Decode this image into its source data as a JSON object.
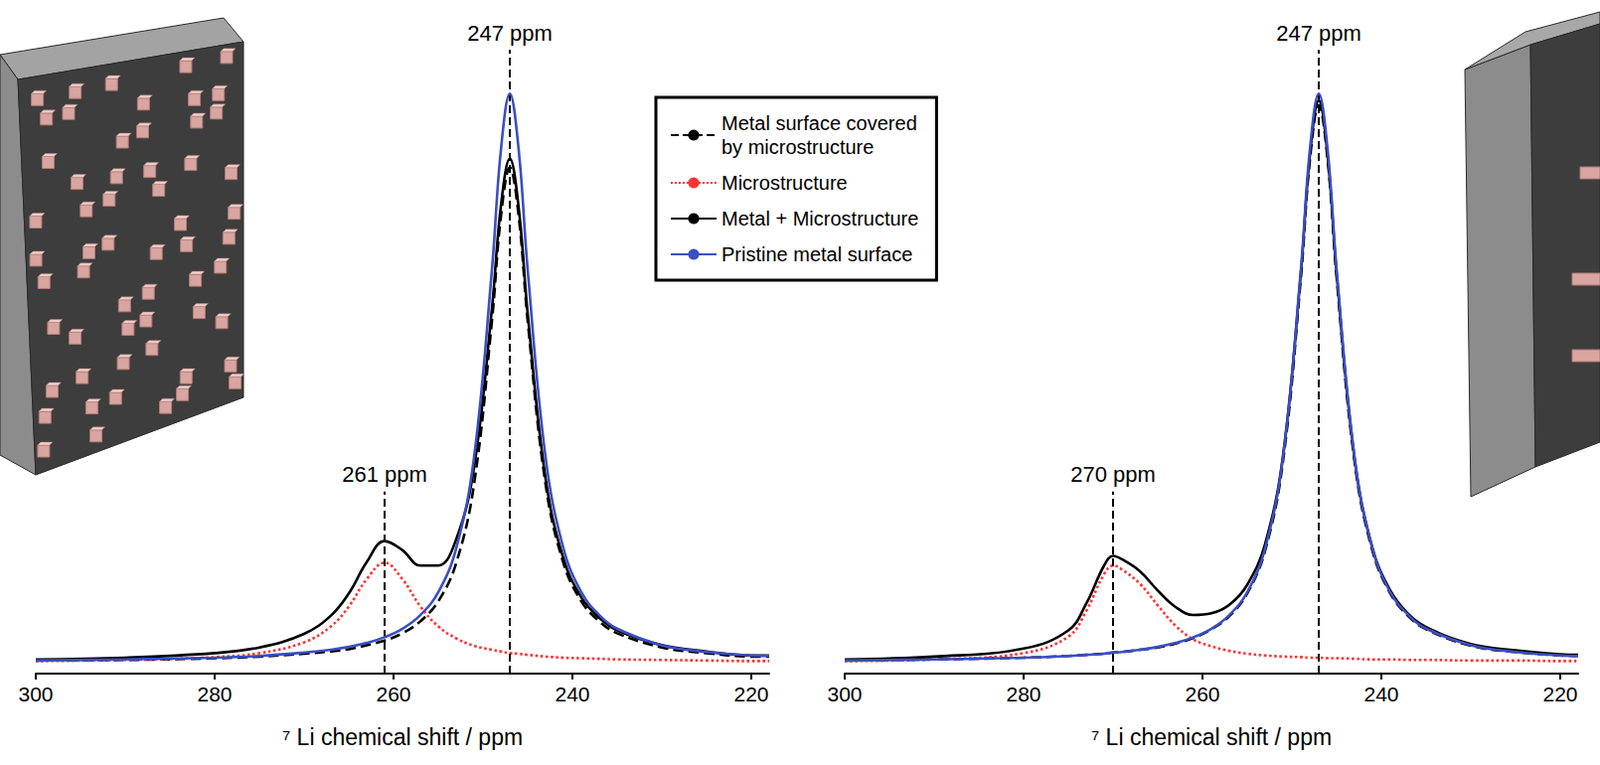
{
  "chart_data": [
    {
      "type": "line",
      "xlabel": "⁷ Li chemical shift / ppm",
      "xlim": [
        300,
        218
      ],
      "xticks": [
        300,
        280,
        260,
        240,
        220
      ],
      "ylim": [
        -0.02,
        1.1
      ],
      "tick_labels": "x",
      "grid": false,
      "legend": "top",
      "x": [
        300,
        290,
        280,
        275,
        270,
        267,
        265,
        263,
        261,
        259,
        257,
        255,
        253,
        251,
        249,
        248,
        247,
        246,
        245,
        243,
        241,
        239,
        237,
        235,
        230,
        225,
        220,
        218
      ],
      "series": [
        {
          "name": "Metal surface covered by microstructure",
          "color": "#000000",
          "line_style": "dashed",
          "values": [
            0.003,
            0.004,
            0.007,
            0.01,
            0.015,
            0.019,
            0.023,
            0.03,
            0.038,
            0.051,
            0.072,
            0.107,
            0.174,
            0.313,
            0.6,
            0.783,
            0.87,
            0.783,
            0.6,
            0.313,
            0.174,
            0.107,
            0.072,
            0.051,
            0.026,
            0.016,
            0.01,
            0.01
          ]
        },
        {
          "name": "Microstructure",
          "color": "#ff3333",
          "line_style": "dotted",
          "values": [
            0.002,
            0.004,
            0.009,
            0.016,
            0.035,
            0.063,
            0.098,
            0.146,
            0.175,
            0.146,
            0.098,
            0.063,
            0.042,
            0.029,
            0.022,
            0.019,
            0.016,
            0.015,
            0.013,
            0.01,
            0.008,
            0.007,
            0.006,
            0.005,
            0.004,
            0.003,
            0.002,
            0.002
          ]
        },
        {
          "name": "Metal + Microstructure",
          "color": "#000000",
          "line_style": "solid",
          "values": [
            0.005,
            0.008,
            0.016,
            0.026,
            0.05,
            0.082,
            0.121,
            0.176,
            0.213,
            0.197,
            0.17,
            0.17,
            0.216,
            0.342,
            0.622,
            0.802,
            0.886,
            0.798,
            0.613,
            0.323,
            0.182,
            0.114,
            0.078,
            0.056,
            0.03,
            0.019,
            0.012,
            0.012
          ]
        },
        {
          "name": "Pristine metal surface",
          "color": "#3b4fc4",
          "line_style": "solid",
          "values": [
            0.003,
            0.005,
            0.008,
            0.011,
            0.017,
            0.022,
            0.027,
            0.034,
            0.044,
            0.059,
            0.083,
            0.123,
            0.2,
            0.36,
            0.69,
            0.9,
            1.0,
            0.9,
            0.69,
            0.36,
            0.2,
            0.123,
            0.083,
            0.059,
            0.03,
            0.018,
            0.012,
            0.011
          ]
        }
      ],
      "annotations": [
        {
          "x": 247,
          "y": 1.077,
          "label": "247 ppm"
        },
        {
          "x": 261,
          "y": 0.3,
          "label": "261 ppm"
        }
      ]
    },
    {
      "type": "line",
      "xlabel": "⁷ Li chemical shift / ppm",
      "xlim": [
        300,
        218
      ],
      "xticks": [
        300,
        280,
        260,
        240,
        220
      ],
      "ylim": [
        -0.02,
        1.1
      ],
      "tick_labels": "x",
      "grid": false,
      "x": [
        300,
        290,
        280,
        275,
        273,
        271,
        270,
        269,
        267,
        265,
        263,
        261,
        259,
        257,
        255,
        253,
        251,
        249,
        248,
        247,
        246,
        245,
        243,
        241,
        239,
        237,
        235,
        230,
        225,
        220,
        218
      ],
      "series": [
        {
          "name": "Metal surface covered by microstructure",
          "color": "#000000",
          "line_style": "dashed",
          "values": [
            0.003,
            0.005,
            0.008,
            0.011,
            0.013,
            0.015,
            0.017,
            0.018,
            0.022,
            0.026,
            0.033,
            0.043,
            0.058,
            0.081,
            0.121,
            0.196,
            0.353,
            0.676,
            0.882,
            0.98,
            0.882,
            0.676,
            0.353,
            0.196,
            0.121,
            0.081,
            0.058,
            0.029,
            0.018,
            0.012,
            0.011
          ]
        },
        {
          "name": "Microstructure",
          "color": "#ff3333",
          "line_style": "dotted",
          "values": [
            0.002,
            0.005,
            0.016,
            0.045,
            0.09,
            0.155,
            0.17,
            0.163,
            0.138,
            0.1,
            0.064,
            0.04,
            0.028,
            0.02,
            0.015,
            0.012,
            0.01,
            0.009,
            0.008,
            0.008,
            0.007,
            0.007,
            0.006,
            0.005,
            0.005,
            0.004,
            0.004,
            0.003,
            0.003,
            0.002,
            0.002
          ]
        },
        {
          "name": "Metal + Microstructure",
          "color": "#000000",
          "line_style": "solid",
          "values": [
            0.005,
            0.01,
            0.024,
            0.056,
            0.103,
            0.17,
            0.187,
            0.181,
            0.16,
            0.126,
            0.097,
            0.083,
            0.086,
            0.101,
            0.136,
            0.208,
            0.363,
            0.685,
            0.89,
            0.988,
            0.889,
            0.683,
            0.359,
            0.201,
            0.126,
            0.085,
            0.062,
            0.032,
            0.021,
            0.014,
            0.013
          ]
        },
        {
          "name": "Pristine metal surface",
          "color": "#3b4fc4",
          "line_style": "solid",
          "values": [
            0.003,
            0.005,
            0.008,
            0.011,
            0.013,
            0.015,
            0.017,
            0.018,
            0.022,
            0.027,
            0.034,
            0.044,
            0.059,
            0.083,
            0.123,
            0.2,
            0.36,
            0.69,
            0.9,
            1.0,
            0.9,
            0.69,
            0.36,
            0.2,
            0.123,
            0.083,
            0.059,
            0.03,
            0.018,
            0.012,
            0.011
          ]
        }
      ],
      "annotations": [
        {
          "x": 247,
          "y": 1.077,
          "label": "247 ppm"
        },
        {
          "x": 270,
          "y": 0.3,
          "label": "270 ppm"
        }
      ]
    }
  ]
}
